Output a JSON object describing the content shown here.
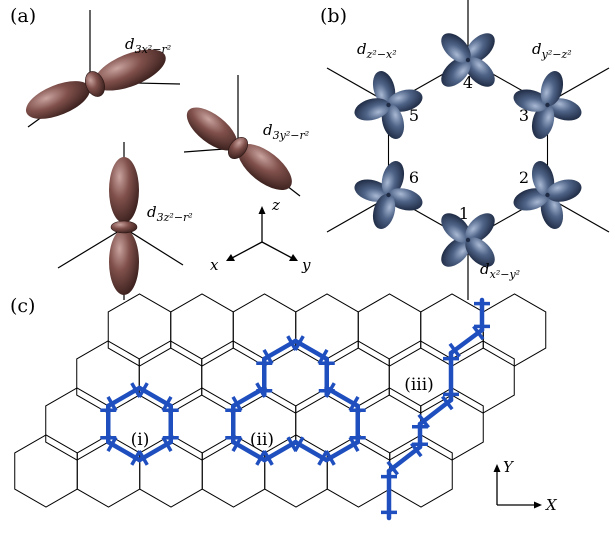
{
  "panels": {
    "a": {
      "label": "(a)",
      "orbitals": [
        {
          "name": "d",
          "sub": "3x²−r²"
        },
        {
          "name": "d",
          "sub": "3y²−r²"
        },
        {
          "name": "d",
          "sub": "3z²−r²"
        }
      ],
      "axes": {
        "x": "x",
        "y": "y",
        "z": "z"
      },
      "orbital_color": "#7a4a46"
    },
    "b": {
      "label": "(b)",
      "site_numbers": [
        "1",
        "2",
        "3",
        "4",
        "5",
        "6"
      ],
      "orbitals": [
        {
          "name": "d",
          "sub": "z²−x²"
        },
        {
          "name": "d",
          "sub": "y²−z²"
        },
        {
          "name": "d",
          "sub": "x²−y²"
        }
      ],
      "orbital_color": "#4a5f82"
    },
    "c": {
      "label": "(c)",
      "loops": [
        "(i)",
        "(ii)",
        "(iii)"
      ],
      "axes": {
        "x": "X",
        "y": "Y"
      },
      "highlight_color": "#1f4fbf"
    }
  }
}
